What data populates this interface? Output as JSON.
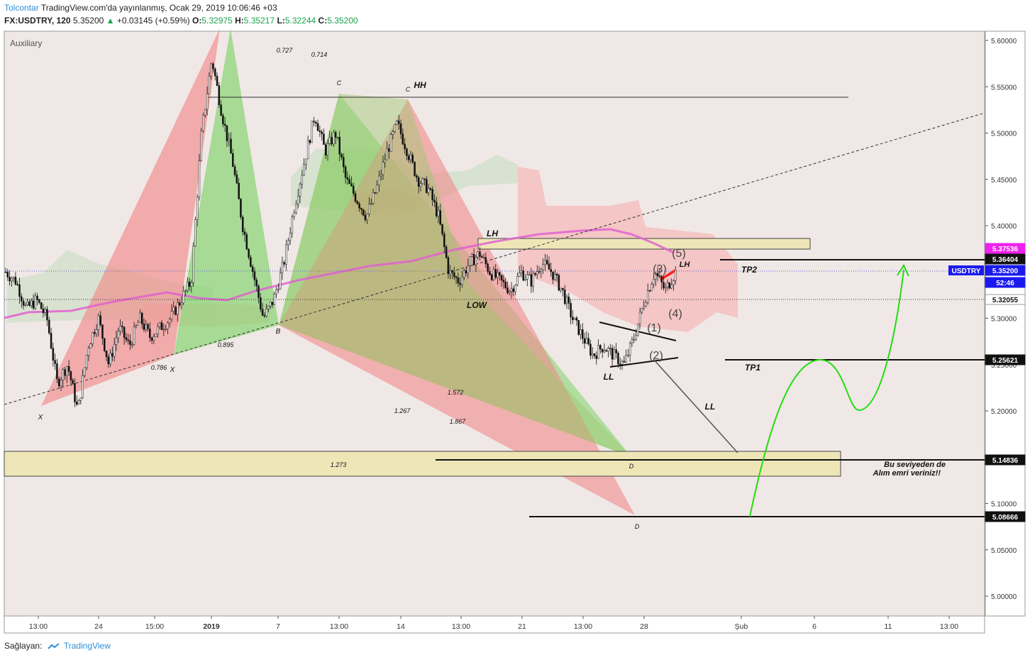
{
  "header": {
    "author": "Tolcontar",
    "published": "TradingView.com'da yayınlanmış, Ocak 29, 2019 10:06:46 +03",
    "symbol": "FX:USDTRY, 120",
    "last": "5.35200",
    "change_arrow": "▲",
    "change": "+0.03145 (+0.59%)",
    "o_label": "O:",
    "o": "5.32975",
    "h_label": "H:",
    "h": "5.35217",
    "l_label": "L:",
    "l": "5.32244",
    "c_label": "C:",
    "c": "5.35200"
  },
  "pane_label": "Auxiliary",
  "footer": {
    "prefix": "Sağlayan:",
    "brand": "TradingView"
  },
  "colors": {
    "up": "#1aa34a",
    "down": "#e03030",
    "bull_pattern": "#7fd36a",
    "bear_pattern": "#f08a8a",
    "ma": "#e060d0",
    "zone": "#efe6b8",
    "cloud": "#f5b8b8",
    "projection": "#22dd11",
    "usdtry_badge": "#1a1aee",
    "magenta_badge": "#ee22ee"
  },
  "chart_data": {
    "type": "candlestick",
    "symbol": "FX:USDTRY",
    "interval": "120",
    "ylim": [
      4.96,
      5.61
    ],
    "ticks": [
      "5.60000",
      "5.55000",
      "5.50000",
      "5.45000",
      "5.40000",
      "5.35000",
      "5.30000",
      "5.25000",
      "5.20000",
      "5.15000",
      "5.10000",
      "5.05000",
      "5.00000"
    ],
    "x_labels": [
      "13:00",
      "24",
      "15:00",
      "2019",
      "7",
      "13:00",
      "14",
      "13:00",
      "21",
      "13:00",
      "28",
      "Şub",
      "6",
      "11",
      "13:00"
    ],
    "price_badges": [
      {
        "text": "5.37536",
        "color": "#ee22ee"
      },
      {
        "text": "5.36404",
        "color": "#111111"
      },
      {
        "text": "5.35200",
        "color": "#1a1aee",
        "label": "USDTRY"
      },
      {
        "text": "52:46",
        "color": "#1a1aee"
      },
      {
        "text": "5.32055",
        "color": "#ffffff"
      },
      {
        "text": "5.25621",
        "color": "#111111"
      },
      {
        "text": "5.14836",
        "color": "#111111"
      },
      {
        "text": "5.08666",
        "color": "#111111"
      }
    ],
    "annotations": [
      "X",
      "0.786",
      "X",
      "0.895",
      "B",
      "B",
      "0.727",
      "0.714",
      "C",
      "C",
      "HH",
      "LH",
      "LOW",
      "LH",
      "(1)",
      "(2)",
      "(3)",
      "(4)",
      "(5)",
      "LL",
      "LL",
      "TP1",
      "TP2",
      "1.572",
      "1.267",
      "1.867",
      "1.273",
      "D",
      "D",
      "Bu seviyeden de",
      "Alım emri veriniz!!"
    ],
    "ohlc_path": [
      5.35,
      5.34,
      5.31,
      5.32,
      5.3,
      5.23,
      5.25,
      5.2,
      5.27,
      5.3,
      5.25,
      5.29,
      5.27,
      5.3,
      5.28,
      5.29,
      5.3,
      5.32,
      5.34,
      5.5,
      5.58,
      5.52,
      5.47,
      5.4,
      5.35,
      5.3,
      5.32,
      5.36,
      5.42,
      5.47,
      5.52,
      5.48,
      5.5,
      5.45,
      5.43,
      5.41,
      5.44,
      5.48,
      5.51,
      5.48,
      5.45,
      5.44,
      5.41,
      5.35,
      5.34,
      5.36,
      5.37,
      5.35,
      5.34,
      5.33,
      5.35,
      5.34,
      5.36,
      5.35,
      5.33,
      5.3,
      5.28,
      5.26,
      5.27,
      5.26,
      5.25,
      5.28,
      5.32,
      5.35,
      5.33,
      5.35
    ]
  }
}
